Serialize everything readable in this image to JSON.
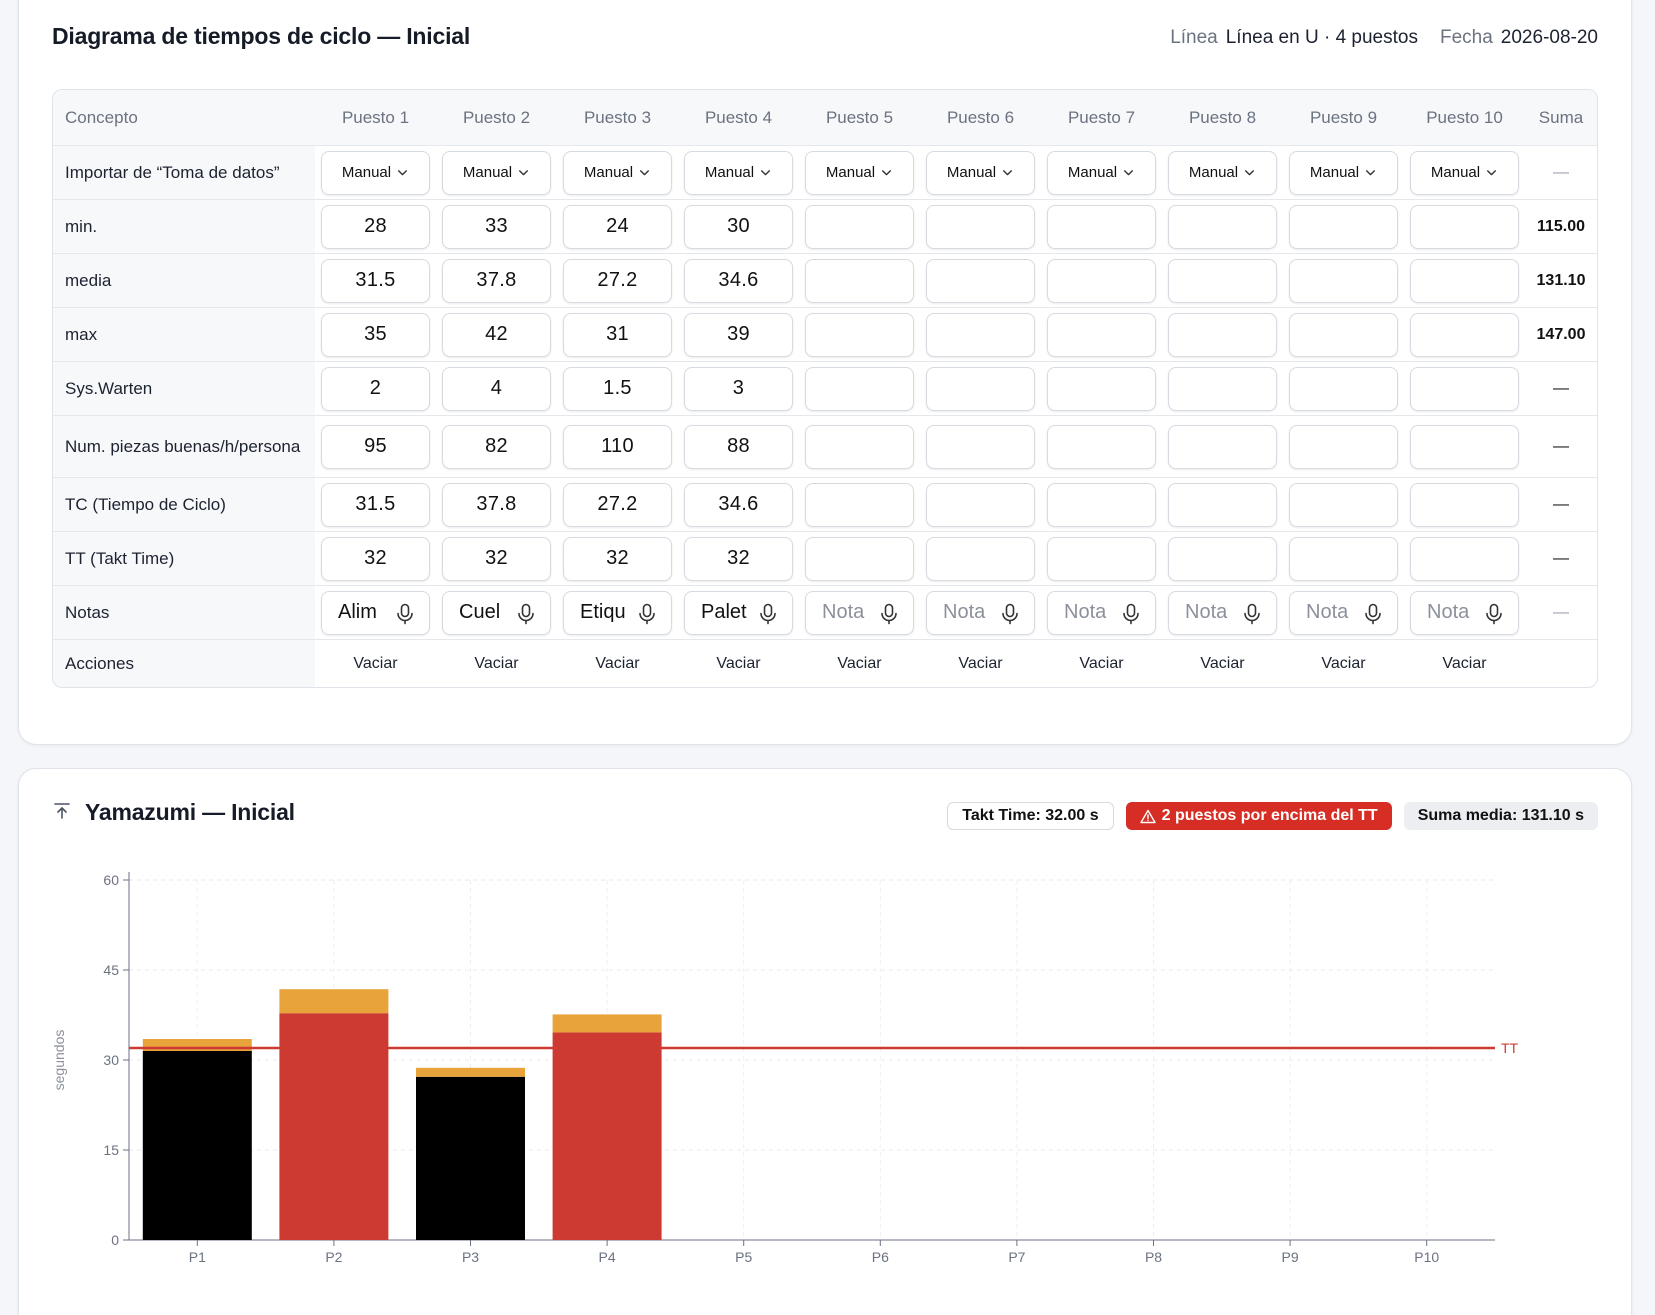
{
  "table_card": {
    "title": "Diagrama de tiempos de ciclo — Inicial",
    "line_label": "Línea",
    "line_value": "Línea en U · 4 puestos",
    "date_label": "Fecha",
    "date_value": "2026-08-20"
  },
  "table": {
    "concept_header": "Concepto",
    "sum_header": "Suma",
    "stations": [
      "Puesto 1",
      "Puesto 2",
      "Puesto 3",
      "Puesto 4",
      "Puesto 5",
      "Puesto 6",
      "Puesto 7",
      "Puesto 8",
      "Puesto 9",
      "Puesto 10"
    ],
    "import_label": "Importar de “Toma de datos”",
    "import_values": [
      "Manual",
      "Manual",
      "Manual",
      "Manual",
      "Manual",
      "Manual",
      "Manual",
      "Manual",
      "Manual",
      "Manual"
    ],
    "import_sum": "—",
    "rows": [
      {
        "label": "min.",
        "values": [
          "28",
          "33",
          "24",
          "30",
          "",
          "",
          "",
          "",
          "",
          ""
        ],
        "sum": "115.00",
        "sum_style": "bold"
      },
      {
        "label": "media",
        "values": [
          "31.5",
          "37.8",
          "27.2",
          "34.6",
          "",
          "",
          "",
          "",
          "",
          ""
        ],
        "sum": "131.10",
        "sum_style": "bold"
      },
      {
        "label": "max",
        "values": [
          "35",
          "42",
          "31",
          "39",
          "",
          "",
          "",
          "",
          "",
          ""
        ],
        "sum": "147.00",
        "sum_style": "bold"
      },
      {
        "label": "Sys.Warten",
        "values": [
          "2",
          "4",
          "1.5",
          "3",
          "",
          "",
          "",
          "",
          "",
          ""
        ],
        "sum": "—",
        "sum_style": "dash"
      },
      {
        "label": "Num. piezas buenas/h/persona",
        "values": [
          "95",
          "82",
          "110",
          "88",
          "",
          "",
          "",
          "",
          "",
          ""
        ],
        "sum": "—",
        "sum_style": "dash"
      },
      {
        "label": "TC (Tiempo de Ciclo)",
        "values": [
          "31.5",
          "37.8",
          "27.2",
          "34.6",
          "",
          "",
          "",
          "",
          "",
          ""
        ],
        "sum": "—",
        "sum_style": "dash"
      },
      {
        "label": "TT (Takt Time)",
        "values": [
          "32",
          "32",
          "32",
          "32",
          "",
          "",
          "",
          "",
          "",
          ""
        ],
        "sum": "—",
        "sum_style": "dash"
      }
    ],
    "notes_label": "Notas",
    "notes_values": [
      "Alim",
      "Cuel",
      "Etiqu",
      "Palet",
      "",
      "",
      "",
      "",
      "",
      ""
    ],
    "notes_placeholder": "Nota",
    "notes_sum": "—",
    "actions_label": "Acciones",
    "action_label": "Vaciar"
  },
  "chart_card": {
    "title": "Yamazumi — Inicial",
    "icon": "arrow-up-to-line-icon",
    "badge_takt": "Takt Time: 32.00 s",
    "badge_alert": "2 puestos por encima del TT",
    "badge_sum": "Suma media: 131.10 s"
  },
  "chart_data": {
    "type": "bar",
    "stacked": true,
    "categories": [
      "P1",
      "P2",
      "P3",
      "P4",
      "P5",
      "P6",
      "P7",
      "P8",
      "P9",
      "P10"
    ],
    "series": [
      {
        "values": [
          31.5,
          37.8,
          27.2,
          34.6,
          0,
          0,
          0,
          0,
          0,
          0
        ]
      },
      {
        "values": [
          2,
          4,
          1.5,
          3,
          0,
          0,
          0,
          0,
          0,
          0
        ]
      }
    ],
    "ylabel": "segundos",
    "ylim": [
      0,
      60
    ],
    "yticks": [
      0,
      15,
      30,
      45,
      60
    ],
    "takt_time": 32,
    "takt_label": "TT",
    "colors": {
      "under_tt": "#000000",
      "over_tt": "#cc3a31",
      "wait": "#e8a33a",
      "takt_line": "#cc3a31"
    },
    "grid": true
  }
}
